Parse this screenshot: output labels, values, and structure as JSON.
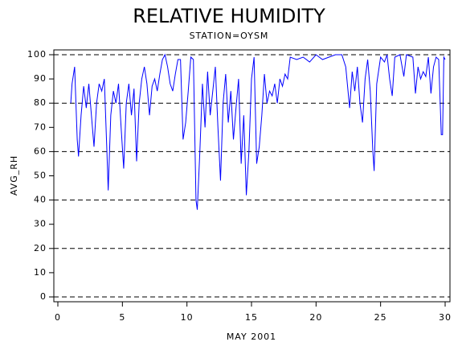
{
  "chart_data": {
    "type": "line",
    "title": "RELATIVE HUMIDITY",
    "subtitle": "STATION=OYSM",
    "y_label": "AVG_RH",
    "x_label": "MAY 2001",
    "x": [
      1.0,
      1.1,
      1.3,
      1.5,
      1.6,
      1.8,
      2.0,
      2.2,
      2.4,
      2.6,
      2.8,
      3.0,
      3.2,
      3.4,
      3.6,
      3.8,
      3.9,
      4.1,
      4.3,
      4.5,
      4.7,
      4.9,
      5.1,
      5.3,
      5.5,
      5.7,
      5.9,
      6.1,
      6.3,
      6.5,
      6.7,
      6.9,
      7.1,
      7.3,
      7.5,
      7.7,
      7.9,
      8.1,
      8.3,
      8.5,
      8.7,
      8.9,
      9.1,
      9.3,
      9.5,
      9.7,
      9.9,
      10.1,
      10.3,
      10.5,
      10.7,
      10.8,
      11.0,
      11.2,
      11.4,
      11.6,
      11.8,
      12.0,
      12.2,
      12.4,
      12.6,
      12.8,
      13.0,
      13.2,
      13.4,
      13.6,
      13.8,
      14.0,
      14.2,
      14.4,
      14.6,
      14.8,
      15.0,
      15.2,
      15.4,
      15.6,
      15.8,
      16.0,
      16.2,
      16.4,
      16.6,
      16.8,
      17.0,
      17.2,
      17.4,
      17.6,
      17.8,
      18.0,
      18.5,
      19.0,
      19.5,
      20.0,
      20.5,
      21.0,
      21.5,
      22.0,
      22.3,
      22.6,
      22.8,
      23.0,
      23.2,
      23.4,
      23.6,
      23.8,
      24.0,
      24.2,
      24.4,
      24.5,
      24.7,
      25.0,
      25.3,
      25.5,
      25.7,
      25.9,
      26.1,
      26.5,
      26.8,
      27.0,
      27.5,
      27.7,
      27.9,
      28.1,
      28.3,
      28.5,
      28.7,
      28.9,
      29.1,
      29.3,
      29.5,
      29.7,
      29.8,
      29.9,
      30.0
    ],
    "series": [
      {
        "name": "AVG_RH",
        "color": "#0000ff",
        "values": [
          80,
          88,
          95,
          65,
          58,
          75,
          87,
          78,
          88,
          75,
          62,
          80,
          88,
          85,
          90,
          60,
          44,
          75,
          85,
          80,
          88,
          70,
          53,
          80,
          88,
          75,
          86,
          56,
          80,
          90,
          95,
          88,
          75,
          87,
          90,
          85,
          92,
          98,
          100,
          95,
          88,
          85,
          92,
          98,
          98,
          65,
          72,
          85,
          99,
          98,
          40,
          36,
          60,
          88,
          70,
          93,
          75,
          85,
          95,
          70,
          48,
          80,
          92,
          72,
          85,
          65,
          78,
          90,
          55,
          75,
          42,
          60,
          90,
          99,
          55,
          62,
          75,
          92,
          80,
          85,
          83,
          88,
          80,
          90,
          87,
          92,
          90,
          99,
          98,
          99,
          97,
          100,
          98,
          99,
          100,
          100,
          95,
          78,
          93,
          85,
          95,
          80,
          72,
          90,
          98,
          85,
          60,
          52,
          88,
          99,
          97,
          100,
          90,
          83,
          99,
          100,
          91,
          100,
          99,
          84,
          95,
          90,
          93,
          91,
          99,
          84,
          95,
          99,
          98,
          67,
          67,
          99,
          98
        ]
      }
    ],
    "xlim": [
      0,
      30
    ],
    "xticks": [
      0,
      5,
      10,
      15,
      20,
      25,
      30
    ],
    "ylim": [
      0,
      100
    ],
    "yticks": [
      0,
      10,
      20,
      30,
      40,
      50,
      60,
      70,
      80,
      90,
      100
    ],
    "reference_lines": [
      0,
      20,
      40,
      60,
      80,
      100
    ]
  }
}
